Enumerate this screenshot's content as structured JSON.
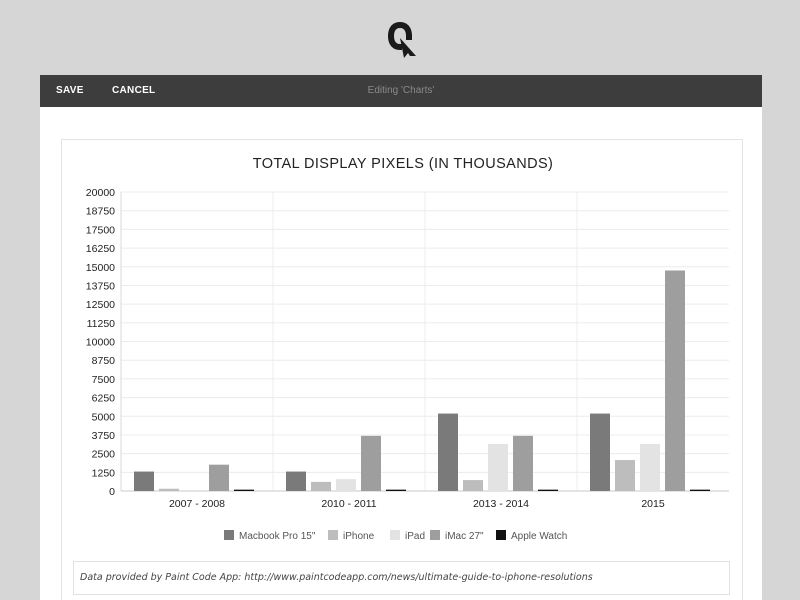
{
  "brand": {
    "logo_icon": "q-logo-icon"
  },
  "toolbar": {
    "save_label": "SAVE",
    "cancel_label": "CANCEL",
    "title": "Editing 'Charts'"
  },
  "source_note": "Data provided by Paint Code App: http://www.paintcodeapp.com/news/ultimate-guide-to-iphone-resolutions",
  "chart_data": {
    "type": "bar",
    "title": "TOTAL DISPLAY PIXELS (IN THOUSANDS)",
    "xlabel": "",
    "ylabel": "",
    "categories": [
      "2007 - 2008",
      "2010 - 2011",
      "2013 - 2014",
      "2015"
    ],
    "ylim": [
      0,
      20000
    ],
    "yticks": [
      0,
      1250,
      2500,
      3750,
      5000,
      6250,
      7500,
      8750,
      10000,
      11250,
      12500,
      13750,
      15000,
      16250,
      17500,
      18750,
      20000
    ],
    "grid": true,
    "legend_position": "bottom",
    "series": [
      {
        "name": "Macbook Pro 15\"",
        "color": "#7a7a7a",
        "values": [
          1300,
          1300,
          5180,
          5180
        ]
      },
      {
        "name": "iPhone",
        "color": "#bdbdbd",
        "values": [
          150,
          610,
          730,
          2070
        ]
      },
      {
        "name": "iPad",
        "color": "#e3e3e3",
        "values": [
          0,
          790,
          3150,
          3150
        ]
      },
      {
        "name": "iMac 27\"",
        "color": "#9e9e9e",
        "values": [
          1760,
          3690,
          3690,
          14750
        ]
      },
      {
        "name": "Apple Watch",
        "color": "#111111",
        "values": [
          90,
          90,
          90,
          90
        ]
      }
    ]
  }
}
